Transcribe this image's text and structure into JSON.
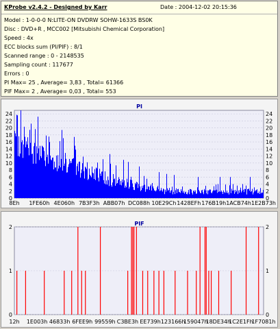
{
  "info": {
    "title": "KProbe v2.4.2 - Designed by Karr",
    "date": "Date : 2004-12-02 20:15:36",
    "lines": [
      "Model : 1-0-0-0 N:LITE-ON DVDRW SOHW-1633S BS0K",
      "Disc : DVD+R , MCC002 [Mitsubishi Chemical Corporation]",
      "Speed : 4x",
      "ECC blocks sum (PI/PIF) : 8/1",
      "Scanned range : 0 - 2148535",
      "Sampling count : 117677",
      "Errors : 0",
      "PI Max= 25 , Average= 3,83 , Total= 61366",
      "PIF Max= 2 , Average= 0,03 , Total= 553"
    ]
  },
  "chart_data": [
    {
      "type": "bar",
      "title": "PI",
      "color": "#0000ff",
      "ylim": [
        0,
        25
      ],
      "yticks": [
        0,
        2,
        4,
        6,
        8,
        10,
        12,
        14,
        16,
        18,
        20,
        22,
        24
      ],
      "xticks": [
        "8Eh",
        "1FE60h",
        "4E060h",
        "7B3F3h",
        "ABB07h",
        "DC088h",
        "10E29Ch",
        "1428EFh",
        "176B19h",
        "1ACB74h",
        "1E2B73h"
      ],
      "x_range_fraction": [
        0,
        1
      ],
      "max": 25,
      "average": 3.83,
      "envelope": [
        {
          "x": 0.0,
          "peak": 24,
          "base": 12
        },
        {
          "x": 0.1,
          "peak": 21,
          "base": 9
        },
        {
          "x": 0.2,
          "peak": 17,
          "base": 7
        },
        {
          "x": 0.3,
          "peak": 13,
          "base": 5
        },
        {
          "x": 0.4,
          "peak": 10,
          "base": 3
        },
        {
          "x": 0.5,
          "peak": 7,
          "base": 2
        },
        {
          "x": 0.6,
          "peak": 5,
          "base": 1
        },
        {
          "x": 0.7,
          "peak": 4,
          "base": 1
        },
        {
          "x": 0.8,
          "peak": 4,
          "base": 1
        },
        {
          "x": 0.9,
          "peak": 4,
          "base": 1
        },
        {
          "x": 1.0,
          "peak": 4,
          "base": 1
        }
      ]
    },
    {
      "type": "bar",
      "title": "PIF",
      "color": "#ff0000",
      "ylim": [
        0,
        2
      ],
      "yticks": [
        0,
        1,
        2
      ],
      "xticks": [
        "12h",
        "1E003h",
        "46833h",
        "6FEE9h",
        "99559h",
        "C3BE3h",
        "EE739h",
        "123166h",
        "159047h",
        "18DE34h",
        "1C2E1Fh",
        "1F7081h"
      ],
      "spikes": [
        {
          "x": 0.01,
          "v": 1
        },
        {
          "x": 0.045,
          "v": 1
        },
        {
          "x": 0.12,
          "v": 1
        },
        {
          "x": 0.2,
          "v": 1
        },
        {
          "x": 0.23,
          "v": 1
        },
        {
          "x": 0.255,
          "v": 2
        },
        {
          "x": 0.27,
          "v": 1
        },
        {
          "x": 0.285,
          "v": 1
        },
        {
          "x": 0.345,
          "v": 2
        },
        {
          "x": 0.455,
          "v": 1
        },
        {
          "x": 0.47,
          "v": 2
        },
        {
          "x": 0.475,
          "v": 2
        },
        {
          "x": 0.48,
          "v": 2
        },
        {
          "x": 0.49,
          "v": 2
        },
        {
          "x": 0.515,
          "v": 1
        },
        {
          "x": 0.535,
          "v": 1
        },
        {
          "x": 0.56,
          "v": 1
        },
        {
          "x": 0.58,
          "v": 1
        },
        {
          "x": 0.6,
          "v": 1
        },
        {
          "x": 0.645,
          "v": 1
        },
        {
          "x": 0.695,
          "v": 1
        },
        {
          "x": 0.73,
          "v": 1
        },
        {
          "x": 0.745,
          "v": 2
        },
        {
          "x": 0.765,
          "v": 2
        },
        {
          "x": 0.77,
          "v": 2
        },
        {
          "x": 0.78,
          "v": 1
        },
        {
          "x": 0.79,
          "v": 1
        },
        {
          "x": 0.82,
          "v": 1
        },
        {
          "x": 0.87,
          "v": 1
        },
        {
          "x": 0.93,
          "v": 2
        },
        {
          "x": 0.98,
          "v": 2
        }
      ]
    }
  ]
}
